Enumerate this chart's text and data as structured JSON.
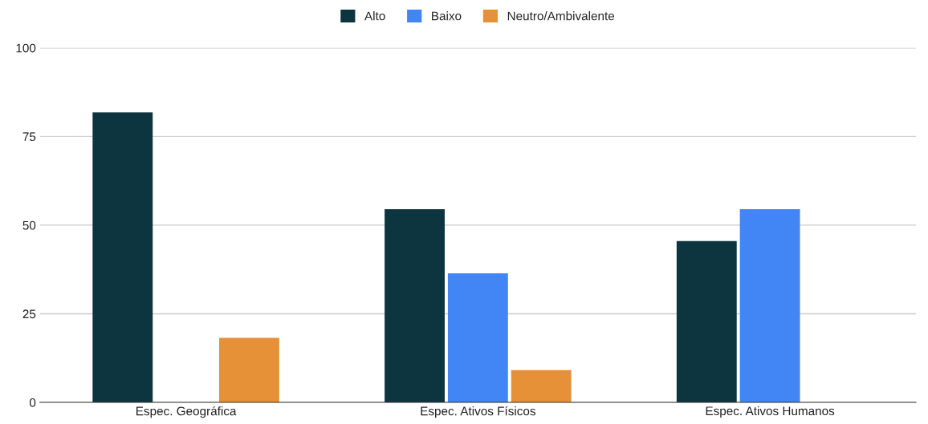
{
  "chart_data": {
    "type": "bar",
    "categories": [
      "Espec. Geográfica",
      "Espec. Ativos Físicos",
      "Espec. Ativos Humanos"
    ],
    "series": [
      {
        "name": "Alto",
        "color": "#0d3540",
        "values": [
          81.8,
          54.5,
          45.5
        ]
      },
      {
        "name": "Baixo",
        "color": "#4285f4",
        "values": [
          0,
          36.4,
          54.5
        ]
      },
      {
        "name": "Neutro/Ambivalente",
        "color": "#e69138",
        "values": [
          18.2,
          9.1,
          0
        ]
      }
    ],
    "ylim": [
      0,
      100
    ],
    "yticks": [
      0,
      25,
      50,
      75,
      100
    ],
    "grid": "y",
    "legend": "top"
  }
}
